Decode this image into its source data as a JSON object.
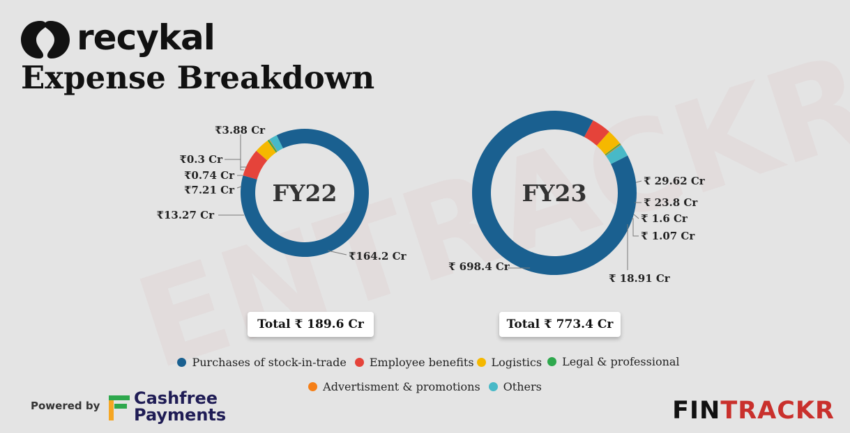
{
  "brand": {
    "logo_text": "recykal"
  },
  "title": "Expense Breakdown",
  "watermark": "ENTRACKR",
  "colors": {
    "purchases": "#1a6090",
    "employee": "#e5433a",
    "logistics": "#f5b800",
    "legal": "#2ea84d",
    "advertisement": "#f57f17",
    "others": "#48b9c7"
  },
  "chart_data": [
    {
      "type": "pie",
      "title": "FY22",
      "categories": [
        "Purchases of stock-in-trade",
        "Employee benefits",
        "Logistics",
        "Legal & professional",
        "Advertisment & promotions",
        "Others"
      ],
      "values": [
        164.2,
        13.27,
        7.21,
        0.74,
        0.3,
        3.88
      ],
      "unit": "Cr",
      "labels": [
        "₹164.2 Cr",
        "₹13.27 Cr",
        "₹7.21 Cr",
        "₹0.74 Cr",
        "₹0.3 Cr",
        "₹3.88 Cr"
      ],
      "total_label": "Total ₹ 189.6 Cr"
    },
    {
      "type": "pie",
      "title": "FY23",
      "categories": [
        "Purchases of stock-in-trade",
        "Employee benefits",
        "Logistics",
        "Legal & professional",
        "Advertisment & promotions",
        "Others"
      ],
      "values": [
        698.4,
        29.62,
        23.8,
        1.6,
        1.07,
        18.91
      ],
      "unit": "Cr",
      "labels": [
        "₹ 698.4 Cr",
        "₹ 29.62 Cr",
        "₹ 23.8 Cr",
        "₹ 1.6 Cr",
        "₹ 1.07 Cr",
        "₹ 18.91 Cr"
      ],
      "total_label": "Total ₹ 773.4 Cr"
    }
  ],
  "legend": [
    {
      "label": "Purchases of stock-in-trade",
      "color_key": "purchases"
    },
    {
      "label": "Employee benefits",
      "color_key": "employee"
    },
    {
      "label": "Logistics",
      "color_key": "logistics"
    },
    {
      "label": "Legal & professional",
      "color_key": "legal"
    },
    {
      "label": "Advertisment & promotions",
      "color_key": "advertisement"
    },
    {
      "label": "Others",
      "color_key": "others"
    }
  ],
  "footer": {
    "powered_by": "Powered by",
    "sponsor_line1": "Cashfree",
    "sponsor_line2": "Payments",
    "fintrackr_a": "FIN",
    "fintrackr_b": "TRACKR"
  }
}
